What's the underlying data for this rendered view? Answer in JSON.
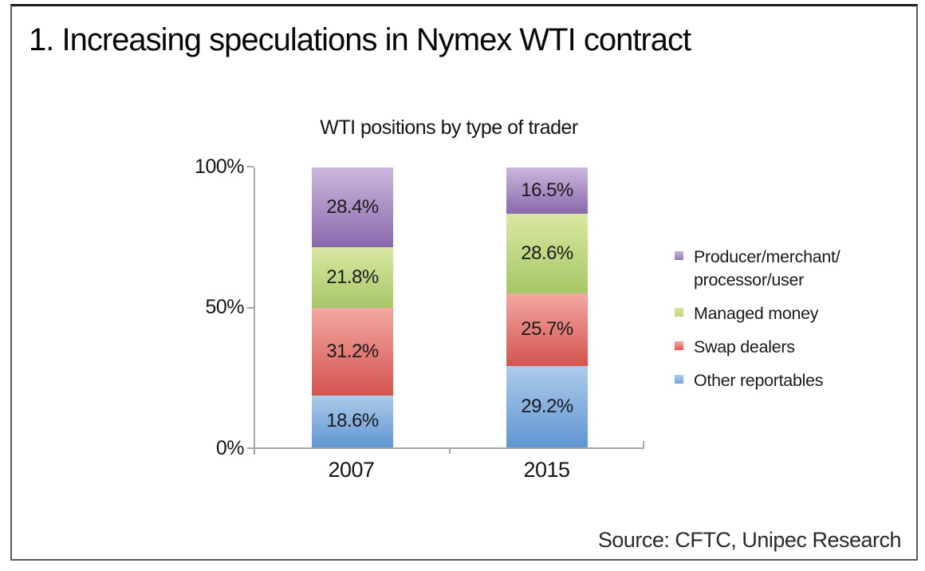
{
  "header": {
    "title": "1. Increasing speculations in Nymex WTI contract"
  },
  "chart_data": {
    "type": "bar",
    "variant": "100-percent-stacked-column",
    "title": "WTI positions by type of trader",
    "categories": [
      "2007",
      "2015"
    ],
    "series": [
      {
        "name": "Other reportables",
        "values": [
          18.6,
          29.2
        ],
        "color_top": "#aecbea",
        "color_bottom": "#5f96d3",
        "legend_color": "#74a3db"
      },
      {
        "name": "Swap dealers",
        "values": [
          31.2,
          25.7
        ],
        "color_top": "#f3a8a2",
        "color_bottom": "#d4534e",
        "legend_color": "#e05b54"
      },
      {
        "name": "Managed money",
        "values": [
          21.8,
          28.6
        ],
        "color_top": "#d9e8a2",
        "color_bottom": "#a6c767",
        "legend_color": "#bdd47e"
      },
      {
        "name": "Producer/merchant/processor/user",
        "values": [
          28.4,
          16.5
        ],
        "color_top": "#cbb8dc",
        "color_bottom": "#8968ac",
        "legend_color": "#9478b6",
        "legend_label": "Producer/merchant/\nprocessor/user"
      }
    ],
    "stack_order": "bottom_to_top",
    "legend_order": "top_is_last_series",
    "data_label_suffix": "%",
    "ylim": [
      0,
      100
    ],
    "y_ticks_top_to_bottom": [
      "100%",
      "50%",
      "0%"
    ],
    "legend_position": "right",
    "axis_color": "#a6a6a6",
    "grid": false
  },
  "footer": {
    "source": "Source: CFTC, Unipec Research"
  }
}
